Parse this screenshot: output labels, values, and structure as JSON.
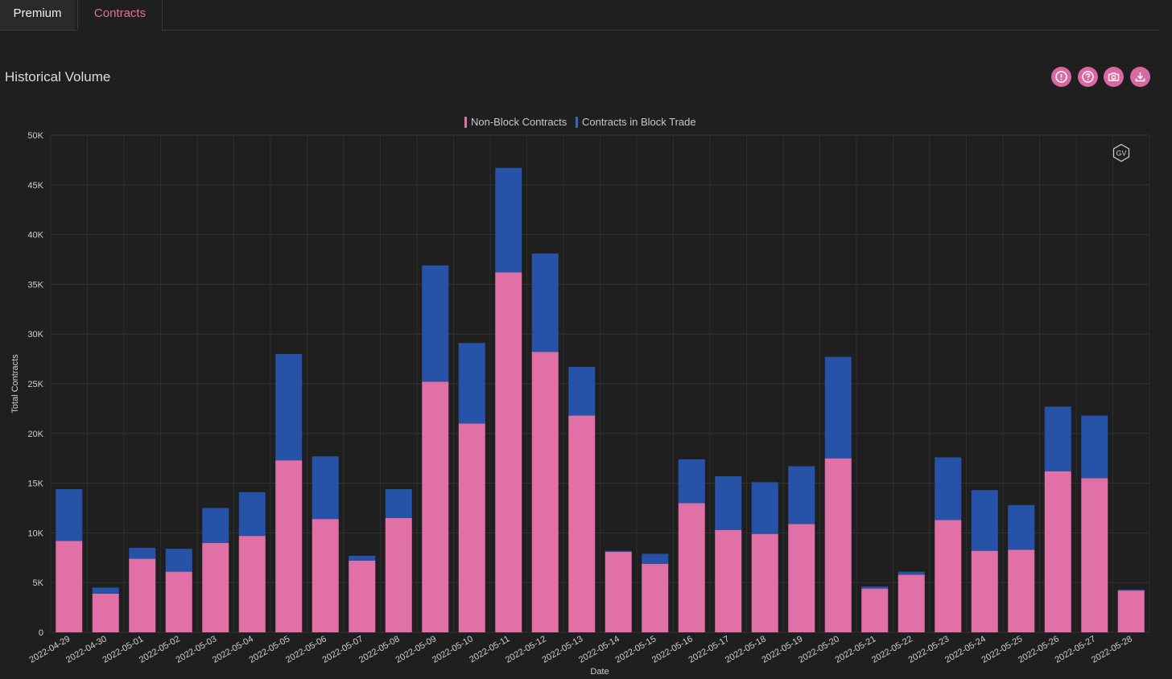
{
  "tabs": [
    {
      "label": "Premium"
    },
    {
      "label": "Contracts"
    }
  ],
  "panel": {
    "title": "Historical Volume"
  },
  "toolbar_icons": [
    {
      "name": "info-icon"
    },
    {
      "name": "help-icon"
    },
    {
      "name": "camera-icon"
    },
    {
      "name": "download-icon"
    }
  ],
  "watermark": {
    "label": "GV"
  },
  "colors": {
    "non_block": "#e070a6",
    "block": "#2653a8",
    "accent": "#d96aa1"
  },
  "chart_data": {
    "type": "bar",
    "stacked": true,
    "categories": [
      "2022-04-29",
      "2022-04-30",
      "2022-05-01",
      "2022-05-02",
      "2022-05-03",
      "2022-05-04",
      "2022-05-05",
      "2022-05-06",
      "2022-05-07",
      "2022-05-08",
      "2022-05-09",
      "2022-05-10",
      "2022-05-11",
      "2022-05-12",
      "2022-05-13",
      "2022-05-14",
      "2022-05-15",
      "2022-05-16",
      "2022-05-17",
      "2022-05-18",
      "2022-05-19",
      "2022-05-20",
      "2022-05-21",
      "2022-05-22",
      "2022-05-23",
      "2022-05-24",
      "2022-05-25",
      "2022-05-26",
      "2022-05-27",
      "2022-05-28"
    ],
    "series": [
      {
        "name": "Non-Block Contracts",
        "color": "#e070a6",
        "values": [
          9200,
          3900,
          7400,
          6100,
          9000,
          9700,
          17300,
          11400,
          7200,
          11500,
          25200,
          21000,
          36200,
          28200,
          21800,
          8100,
          6900,
          13000,
          10300,
          9900,
          10900,
          17500,
          4400,
          5800,
          11300,
          8200,
          8300,
          16200,
          15500,
          4200
        ]
      },
      {
        "name": "Contracts in Block Trade",
        "color": "#2653a8",
        "values": [
          5200,
          600,
          1100,
          2300,
          3500,
          4400,
          10700,
          6300,
          500,
          2900,
          11700,
          8100,
          10500,
          9900,
          4900,
          100,
          1000,
          4400,
          5400,
          5200,
          5800,
          10200,
          200,
          300,
          6300,
          6100,
          4500,
          6500,
          6300,
          100
        ]
      }
    ],
    "xlabel": "Date",
    "ylabel": "Total Contracts",
    "ylim": [
      0,
      50000
    ],
    "yticks": [
      0,
      5000,
      10000,
      15000,
      20000,
      25000,
      30000,
      35000,
      40000,
      45000,
      50000
    ],
    "ytick_labels": [
      "0",
      "5K",
      "10K",
      "15K",
      "20K",
      "25K",
      "30K",
      "35K",
      "40K",
      "45K",
      "50K"
    ],
    "grid": true,
    "legend_position": "top-center"
  }
}
